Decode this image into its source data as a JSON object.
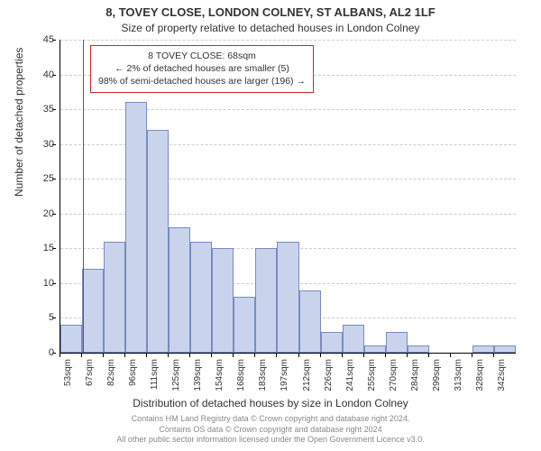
{
  "title_main": "8, TOVEY CLOSE, LONDON COLNEY, ST ALBANS, AL2 1LF",
  "title_sub": "Size of property relative to detached houses in London Colney",
  "y_axis_title": "Number of detached properties",
  "x_axis_title": "Distribution of detached houses by size in London Colney",
  "footer_line1": "Contains HM Land Registry data © Crown copyright and database right 2024.",
  "footer_line2": "Contains OS data © Crown copyright and database right 2024",
  "footer_line3": "All other public sector information licensed under the Open Government Licence v3.0.",
  "chart": {
    "type": "histogram",
    "ylim": [
      0,
      45
    ],
    "ytick_step": 5,
    "x_start": 53,
    "bin_width": 14.5,
    "x_labels": [
      "53sqm",
      "67sqm",
      "82sqm",
      "96sqm",
      "111sqm",
      "125sqm",
      "139sqm",
      "154sqm",
      "168sqm",
      "183sqm",
      "197sqm",
      "212sqm",
      "226sqm",
      "241sqm",
      "255sqm",
      "270sqm",
      "284sqm",
      "299sqm",
      "313sqm",
      "328sqm",
      "342sqm"
    ],
    "values": [
      4,
      12,
      16,
      36,
      32,
      18,
      16,
      15,
      8,
      15,
      16,
      9,
      3,
      4,
      1,
      3,
      1,
      0,
      0,
      1,
      1
    ],
    "bar_fill": "#c9d3ec",
    "bar_stroke": "#7a8bbf",
    "grid_color": "#cccccc",
    "background": "#ffffff",
    "marker": {
      "x_value": 68,
      "color": "#d62728"
    }
  },
  "annotation": {
    "line1": "8 TOVEY CLOSE: 68sqm",
    "line2": "← 2% of detached houses are smaller (5)",
    "line3": "98% of semi-detached houses are larger (196) →",
    "border_color": "#d62728",
    "background": "#ffffff"
  }
}
